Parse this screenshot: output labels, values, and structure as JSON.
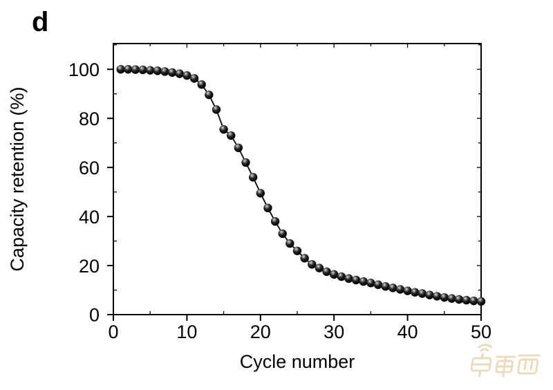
{
  "panel_label": "d",
  "watermark": {
    "text": "车东西",
    "color": "#d9bf8c"
  },
  "colors": {
    "background": "#ffffff",
    "axis": "#000000",
    "line": "#000000",
    "marker": "#000000"
  },
  "chart_data": {
    "type": "line",
    "title": "",
    "xlabel": "Cycle number",
    "ylabel": "Capacity retention (%)",
    "xlim": [
      0,
      50
    ],
    "ylim": [
      0,
      110.5
    ],
    "x_major_ticks": [
      0,
      10,
      20,
      30,
      40,
      50
    ],
    "x_minor_ticks": [
      5,
      15,
      25,
      35,
      45
    ],
    "y_major_ticks": [
      0,
      20,
      40,
      60,
      80,
      100
    ],
    "y_minor_ticks": [
      10,
      30,
      50,
      70,
      90,
      110
    ],
    "grid": false,
    "legend": "none",
    "marker_style": "3d-sphere",
    "series": [
      {
        "name": "Capacity retention",
        "x": [
          1,
          2,
          3,
          4,
          5,
          6,
          7,
          8,
          9,
          10,
          11,
          12,
          13,
          14,
          15,
          16,
          17,
          18,
          19,
          20,
          21,
          22,
          23,
          24,
          25,
          26,
          27,
          28,
          29,
          30,
          31,
          32,
          33,
          34,
          35,
          36,
          37,
          38,
          39,
          40,
          41,
          42,
          43,
          44,
          45,
          46,
          47,
          48,
          49,
          50
        ],
        "y": [
          100.0,
          100.0,
          99.9,
          99.8,
          99.6,
          99.4,
          99.1,
          98.7,
          98.2,
          97.5,
          96.3,
          93.8,
          89.6,
          83.6,
          75.5,
          73.0,
          68.0,
          62.0,
          56.0,
          49.5,
          43.5,
          38.0,
          33.0,
          29.0,
          26.0,
          23.0,
          20.5,
          19.0,
          17.5,
          16.4,
          15.5,
          14.7,
          14.1,
          13.5,
          12.9,
          12.2,
          11.5,
          10.9,
          10.3,
          9.7,
          9.1,
          8.6,
          8.0,
          7.5,
          7.0,
          6.6,
          6.2,
          5.9,
          5.6,
          5.4
        ]
      }
    ]
  }
}
